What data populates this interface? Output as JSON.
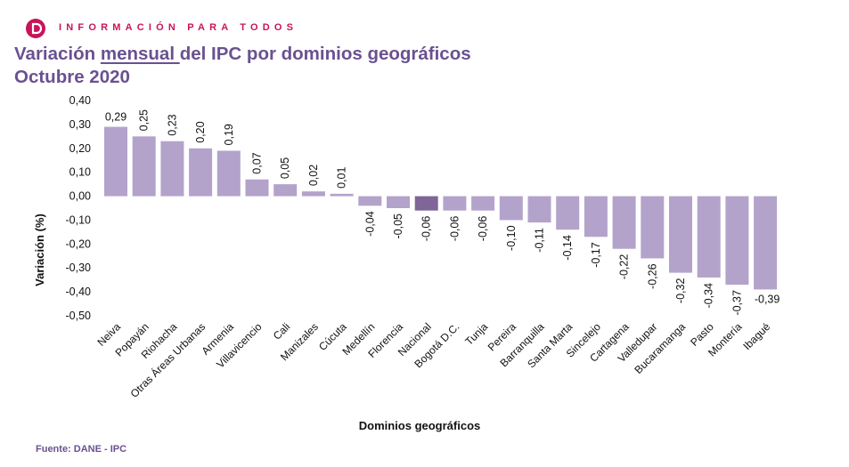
{
  "header": {
    "brand_text": "INFORMACIÓN PARA TODOS",
    "logo_icon": "dane-logo-icon",
    "brand_color": "#c8145a"
  },
  "title": {
    "part1": "Variación ",
    "underlined": "mensual ",
    "part2": "del IPC por dominios geográficos",
    "line2": "Octubre 2020",
    "color": "#6a5190"
  },
  "footer": {
    "source": "Fuente: DANE - IPC"
  },
  "chart_data": {
    "type": "bar",
    "xlabel": "Dominios geográficos",
    "ylabel": "Variación (%)",
    "ylim": [
      -0.5,
      0.4
    ],
    "yticks": [
      "0,40",
      "0,30",
      "0,20",
      "0,10",
      "0,00",
      "-0,10",
      "-0,20",
      "-0,30",
      "-0,40",
      "-0,50"
    ],
    "ytick_values": [
      0.4,
      0.3,
      0.2,
      0.1,
      0.0,
      -0.1,
      -0.2,
      -0.3,
      -0.4,
      -0.5
    ],
    "bar_color": "#b3a3cb",
    "highlight_color": "#7f6598",
    "highlight_category": "Nacional",
    "categories": [
      "Neiva",
      "Popayán",
      "Riohacha",
      "Otras Áreas Urbanas",
      "Armenia",
      "Villavicencio",
      "Cali",
      "Manizales",
      "Cúcuta",
      "Medellín",
      "Florencia",
      "Nacional",
      "Bogotá D.C.",
      "Tunja",
      "Pereira",
      "Barranquilla",
      "Santa Marta",
      "Sincelejo",
      "Cartagena",
      "Valledupar",
      "Bucaramanga",
      "Pasto",
      "Montería",
      "Ibagué"
    ],
    "values": [
      0.29,
      0.25,
      0.23,
      0.2,
      0.19,
      0.07,
      0.05,
      0.02,
      0.01,
      -0.04,
      -0.05,
      -0.06,
      -0.06,
      -0.06,
      -0.1,
      -0.11,
      -0.14,
      -0.17,
      -0.22,
      -0.26,
      -0.32,
      -0.34,
      -0.37,
      -0.39
    ],
    "labels": [
      "0,29",
      "0,25",
      "0,23",
      "0,20",
      "0,19",
      "0,07",
      "0,05",
      "0,02",
      "0,01",
      "-0,04",
      "-0,05",
      "-0,06",
      "-0,06",
      "-0,06",
      "-0,10",
      "-0,11",
      "-0,14",
      "-0,17",
      "-0,22",
      "-0,26",
      "-0,32",
      "-0,34",
      "-0,37",
      "-0,39"
    ],
    "grid": false,
    "legend": "none"
  }
}
